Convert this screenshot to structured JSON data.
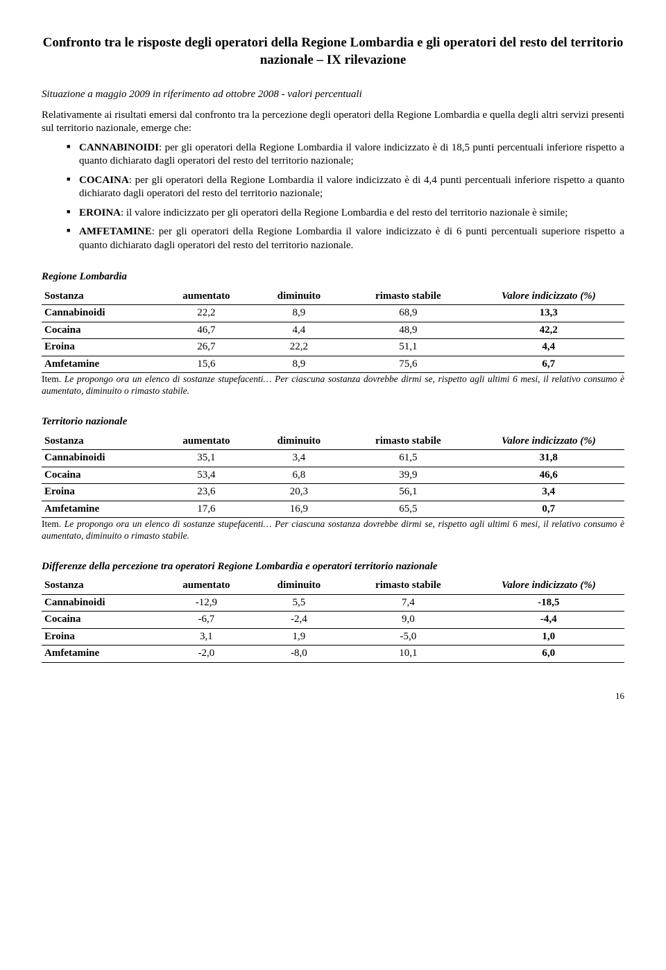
{
  "title": "Confronto tra le risposte degli operatori della Regione Lombardia e gli operatori del resto del territorio nazionale – IX rilevazione",
  "subtitle": "Situazione a maggio 2009 in riferimento ad ottobre 2008 - valori percentuali",
  "intro": "Relativamente ai risultati emersi dal confronto tra la percezione degli operatori della Regione Lombardia e quella degli altri servizi presenti sul territorio nazionale, emerge che:",
  "bullets": [
    {
      "label": "CANNABINOIDI",
      "text": ": per gli operatori della Regione Lombardia il valore indicizzato è di 18,5 punti percentuali inferiore rispetto a quanto dichiarato dagli operatori del resto del territorio nazionale;"
    },
    {
      "label": "COCAINA",
      "text": ": per gli operatori della Regione Lombardia il valore indicizzato è di 4,4 punti percentuali inferiore rispetto a quanto dichiarato dagli operatori del resto del territorio nazionale;"
    },
    {
      "label": "EROINA",
      "text": ": il valore indicizzato per gli operatori della Regione Lombardia e del resto del territorio nazionale è simile;"
    },
    {
      "label": "AMFETAMINE",
      "text": ": per gli operatori della Regione Lombardia il valore indicizzato è di 6 punti percentuali superiore rispetto a quanto dichiarato dagli operatori del resto del territorio nazionale."
    }
  ],
  "table_headers": {
    "sostanza": "Sostanza",
    "aumentato": "aumentato",
    "diminuito": "diminuito",
    "stabile": "rimasto stabile",
    "indice": "Valore indicizzato (%)"
  },
  "tables": [
    {
      "heading": "Regione Lombardia",
      "rows": [
        {
          "s": "Cannabinoidi",
          "a": "22,2",
          "d": "8,9",
          "st": "68,9",
          "i": "13,3"
        },
        {
          "s": "Cocaina",
          "a": "46,7",
          "d": "4,4",
          "st": "48,9",
          "i": "42,2"
        },
        {
          "s": "Eroina",
          "a": "26,7",
          "d": "22,2",
          "st": "51,1",
          "i": "4,4"
        },
        {
          "s": "Amfetamine",
          "a": "15,6",
          "d": "8,9",
          "st": "75,6",
          "i": "6,7"
        }
      ],
      "note_lead": "Item.",
      "note_text": " Le propongo ora un elenco di sostanze stupefacenti… Per ciascuna sostanza dovrebbe dirmi se, rispetto agli ultimi 6 mesi, il relativo consumo è aumentato, diminuito o rimasto stabile."
    },
    {
      "heading": "Territorio nazionale",
      "rows": [
        {
          "s": "Cannabinoidi",
          "a": "35,1",
          "d": "3,4",
          "st": "61,5",
          "i": "31,8"
        },
        {
          "s": "Cocaina",
          "a": "53,4",
          "d": "6,8",
          "st": "39,9",
          "i": "46,6"
        },
        {
          "s": "Eroina",
          "a": "23,6",
          "d": "20,3",
          "st": "56,1",
          "i": "3,4"
        },
        {
          "s": "Amfetamine",
          "a": "17,6",
          "d": "16,9",
          "st": "65,5",
          "i": "0,7"
        }
      ],
      "note_lead": "Item.",
      "note_text": " Le propongo ora un elenco di sostanze stupefacenti… Per ciascuna sostanza dovrebbe dirmi se, rispetto agli ultimi 6 mesi, il relativo consumo è aumentato, diminuito o rimasto stabile."
    },
    {
      "heading": "Differenze della percezione tra operatori Regione Lombardia e operatori territorio nazionale",
      "rows": [
        {
          "s": "Cannabinoidi",
          "a": "-12,9",
          "d": "5,5",
          "st": "7,4",
          "i": "-18,5"
        },
        {
          "s": "Cocaina",
          "a": "-6,7",
          "d": "-2,4",
          "st": "9,0",
          "i": "-4,4"
        },
        {
          "s": "Eroina",
          "a": "3,1",
          "d": "1,9",
          "st": "-5,0",
          "i": "1,0"
        },
        {
          "s": "Amfetamine",
          "a": "-2,0",
          "d": "-8,0",
          "st": "10,1",
          "i": "6,0"
        }
      ]
    }
  ],
  "page_number": "16"
}
